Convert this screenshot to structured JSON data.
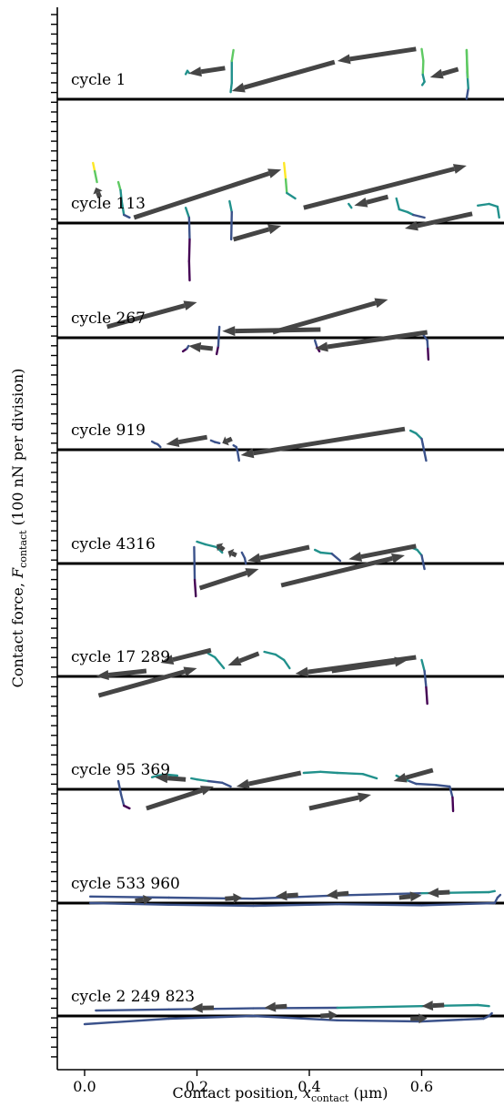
{
  "chart_data": {
    "type": "line",
    "xlabel_main": "Contact position, ",
    "xlabel_var": "x",
    "xlabel_sub": "contact",
    "xlabel_unit": " (μm)",
    "ylabel_main": "Contact force, ",
    "ylabel_var": "F",
    "ylabel_sub": "contact",
    "ylabel_unit": " (100 nN per division)",
    "xlim": [
      -0.05,
      0.745
    ],
    "x_ticks": [
      {
        "value": 0.0,
        "label": "0.0"
      },
      {
        "value": 0.2,
        "label": "0.2"
      },
      {
        "value": 0.4,
        "label": "0.4"
      },
      {
        "value": 0.6,
        "label": "0.6"
      }
    ],
    "y_scale": "offset stacked panels, minor ticks every 100 nN",
    "colormap": [
      "#440154",
      "#3b528b",
      "#21918c",
      "#5ec962",
      "#fde725"
    ],
    "arrow_color": "#454545",
    "separator_color": "#000000",
    "panels": [
      {
        "label": "cycle 1",
        "segments": [
          {
            "x": [
              0.18,
              0.183,
              0.186
            ],
            "y": [
              46,
              52,
              48
            ]
          },
          {
            "x": [
              0.26,
              0.262,
              0.262,
              0.265
            ],
            "y": [
              13,
              30,
              70,
              90
            ]
          },
          {
            "x": [
              0.6,
              0.603,
              0.602,
              0.605,
              0.601
            ],
            "y": [
              92,
              70,
              45,
              32,
              26
            ]
          },
          {
            "x": [
              0.68,
              0.683,
              0.681,
              0.68,
              0.682
            ],
            "y": [
              1,
              20,
              50,
              90,
              40
            ]
          }
        ],
        "arrows": [
          {
            "from": [
              0.25,
              57
            ],
            "to": [
              0.185,
              47
            ]
          },
          {
            "from": [
              0.445,
              68
            ],
            "to": [
              0.262,
              15
            ]
          },
          {
            "from": [
              0.59,
              92
            ],
            "to": [
              0.45,
              70
            ]
          },
          {
            "from": [
              0.665,
              55
            ],
            "to": [
              0.615,
              40
            ]
          }
        ]
      },
      {
        "label": "cycle 113",
        "segments": [
          {
            "x": [
              0.015,
              0.018,
              0.022
            ],
            "y": [
              110,
              95,
              75
            ]
          },
          {
            "x": [
              0.06,
              0.064,
              0.066,
              0.07,
              0.08
            ],
            "y": [
              75,
              60,
              40,
              15,
              10
            ]
          },
          {
            "x": [
              0.355,
              0.358,
              0.36,
              0.375
            ],
            "y": [
              110,
              80,
              55,
              45
            ]
          },
          {
            "x": [
              0.47,
              0.475
            ],
            "y": [
              35,
              28
            ]
          },
          {
            "x": [
              0.555,
              0.56,
              0.575,
              0.585,
              0.605
            ],
            "y": [
              45,
              25,
              20,
              15,
              10
            ]
          },
          {
            "x": [
              0.7,
              0.72,
              0.735,
              0.738
            ],
            "y": [
              32,
              35,
              30,
              10
            ]
          },
          {
            "x": [
              0.18,
              0.186,
              0.187,
              0.186,
              0.187
            ],
            "y": [
              28,
              10,
              -30,
              -70,
              -105
            ]
          },
          {
            "x": [
              0.258,
              0.262,
              0.261
            ],
            "y": [
              40,
              20,
              -30
            ]
          }
        ],
        "arrows": [
          {
            "from": [
              0.027,
              47
            ],
            "to": [
              0.02,
              65
            ]
          },
          {
            "from": [
              0.088,
              10
            ],
            "to": [
              0.35,
              98
            ]
          },
          {
            "from": [
              0.39,
              28
            ],
            "to": [
              0.68,
              105
            ]
          },
          {
            "from": [
              0.265,
              -30
            ],
            "to": [
              0.35,
              -5
            ]
          },
          {
            "from": [
              0.54,
              48
            ],
            "to": [
              0.48,
              32
            ]
          },
          {
            "from": [
              0.69,
              17
            ],
            "to": [
              0.57,
              -10
            ]
          }
        ]
      },
      {
        "label": "cycle 267",
        "segments": [
          {
            "x": [
              0.175,
              0.182,
              0.185
            ],
            "y": [
              -25,
              -20,
              -15
            ]
          },
          {
            "x": [
              0.235,
              0.238,
              0.239,
              0.24
            ],
            "y": [
              -30,
              -15,
              5,
              20
            ]
          },
          {
            "x": [
              0.41,
              0.414,
              0.418
            ],
            "y": [
              -5,
              -18,
              -25
            ]
          },
          {
            "x": [
              0.6,
              0.61,
              0.611,
              0.612
            ],
            "y": [
              10,
              -5,
              -20,
              -40
            ]
          }
        ],
        "arrows": [
          {
            "from": [
              0.228,
              -20
            ],
            "to": [
              0.185,
              -15
            ]
          },
          {
            "from": [
              0.42,
              15
            ],
            "to": [
              0.245,
              12
            ]
          },
          {
            "from": [
              0.61,
              10
            ],
            "to": [
              0.41,
              -20
            ]
          },
          {
            "from": [
              0.04,
              20
            ],
            "to": [
              0.2,
              65
            ]
          },
          {
            "from": [
              0.335,
              10
            ],
            "to": [
              0.54,
              70
            ]
          }
        ]
      },
      {
        "label": "cycle 919",
        "segments": [
          {
            "x": [
              0.12,
              0.125,
              0.13,
              0.135
            ],
            "y": [
              15,
              12,
              10,
              5
            ]
          },
          {
            "x": [
              0.225,
              0.232,
              0.24
            ],
            "y": [
              17,
              14,
              12
            ]
          },
          {
            "x": [
              0.265,
              0.27,
              0.272,
              0.275
            ],
            "y": [
              8,
              5,
              -2,
              -20
            ]
          },
          {
            "x": [
              0.58,
              0.59,
              0.6,
              0.602,
              0.605,
              0.608
            ],
            "y": [
              35,
              30,
              20,
              10,
              -5,
              -20
            ]
          }
        ],
        "arrows": [
          {
            "from": [
              0.218,
              23
            ],
            "to": [
              0.145,
              10
            ]
          },
          {
            "from": [
              0.262,
              20
            ],
            "to": [
              0.245,
              12
            ]
          },
          {
            "from": [
              0.57,
              38
            ],
            "to": [
              0.278,
              -10
            ]
          }
        ]
      },
      {
        "label": "cycle 4316",
        "segments": [
          {
            "x": [
              0.2,
              0.215,
              0.235,
              0.245
            ],
            "y": [
              40,
              35,
              30,
              20
            ]
          },
          {
            "x": [
              0.28,
              0.285,
              0.287
            ],
            "y": [
              20,
              10,
              0
            ]
          },
          {
            "x": [
              0.41,
              0.42,
              0.44,
              0.455
            ],
            "y": [
              25,
              20,
              18,
              5
            ]
          },
          {
            "x": [
              0.58,
              0.592,
              0.6,
              0.605
            ],
            "y": [
              30,
              25,
              15,
              -10
            ]
          },
          {
            "x": [
              0.195,
              0.196,
              0.198
            ],
            "y": [
              30,
              -30,
              -60
            ]
          }
        ],
        "arrows": [
          {
            "from": [
              0.248,
              25
            ],
            "to": [
              0.235,
              35
            ]
          },
          {
            "from": [
              0.27,
              15
            ],
            "to": [
              0.255,
              22
            ]
          },
          {
            "from": [
              0.4,
              30
            ],
            "to": [
              0.29,
              5
            ]
          },
          {
            "from": [
              0.59,
              32
            ],
            "to": [
              0.47,
              8
            ]
          },
          {
            "from": [
              0.205,
              -45
            ],
            "to": [
              0.31,
              -10
            ]
          },
          {
            "from": [
              0.35,
              -40
            ],
            "to": [
              0.57,
              15
            ]
          }
        ]
      },
      {
        "label": "cycle 17 289",
        "segments": [
          {
            "x": [
              0.22,
              0.232,
              0.24,
              0.248
            ],
            "y": [
              42,
              35,
              25,
              15
            ]
          },
          {
            "x": [
              0.32,
              0.34,
              0.355,
              0.365
            ],
            "y": [
              45,
              40,
              30,
              15
            ]
          },
          {
            "x": [
              0.6,
              0.605,
              0.608,
              0.61
            ],
            "y": [
              30,
              10,
              -20,
              -50
            ]
          }
        ],
        "arrows": [
          {
            "from": [
              0.225,
              48
            ],
            "to": [
              0.135,
              25
            ]
          },
          {
            "from": [
              0.31,
              42
            ],
            "to": [
              0.255,
              20
            ]
          },
          {
            "from": [
              0.59,
              35
            ],
            "to": [
              0.375,
              5
            ]
          },
          {
            "from": [
              0.11,
              10
            ],
            "to": [
              0.02,
              0
            ]
          },
          {
            "from": [
              0.025,
              -35
            ],
            "to": [
              0.2,
              15
            ]
          },
          {
            "from": [
              0.44,
              10
            ],
            "to": [
              0.575,
              30
            ]
          }
        ]
      },
      {
        "label": "cycle 95 369",
        "segments": [
          {
            "x": [
              0.12,
              0.13,
              0.145,
              0.165
            ],
            "y": [
              22,
              25,
              27,
              25
            ]
          },
          {
            "x": [
              0.19,
              0.2,
              0.22,
              0.245,
              0.26
            ],
            "y": [
              20,
              18,
              15,
              12,
              5
            ]
          },
          {
            "x": [
              0.39,
              0.42,
              0.45,
              0.495,
              0.52
            ],
            "y": [
              30,
              32,
              30,
              28,
              20
            ]
          },
          {
            "x": [
              0.555,
              0.565,
              0.578,
              0.59
            ],
            "y": [
              25,
              20,
              15,
              10
            ]
          },
          {
            "x": [
              0.59,
              0.625,
              0.65,
              0.655,
              0.656
            ],
            "y": [
              10,
              8,
              5,
              -15,
              -40
            ]
          },
          {
            "x": [
              0.06,
              0.065,
              0.07,
              0.08
            ],
            "y": [
              15,
              -10,
              -30,
              -35
            ]
          }
        ],
        "arrows": [
          {
            "from": [
              0.18,
              18
            ],
            "to": [
              0.125,
              22
            ]
          },
          {
            "from": [
              0.385,
              30
            ],
            "to": [
              0.27,
              5
            ]
          },
          {
            "from": [
              0.62,
              35
            ],
            "to": [
              0.55,
              15
            ]
          },
          {
            "from": [
              0.11,
              -35
            ],
            "to": [
              0.23,
              5
            ]
          },
          {
            "from": [
              0.4,
              -35
            ],
            "to": [
              0.51,
              -10
            ]
          }
        ]
      },
      {
        "label": "cycle 533 960",
        "segments": [
          {
            "x": [
              0.01,
              0.15,
              0.3,
              0.45,
              0.6,
              0.73,
              0.735,
              0.74
            ],
            "y": [
              0,
              -3,
              -5,
              -2,
              -4,
              0,
              10,
              15
            ]
          },
          {
            "x": [
              0.01,
              0.15,
              0.3,
              0.45,
              0.6,
              0.72,
              0.73
            ],
            "y": [
              12,
              10,
              8,
              14,
              18,
              20,
              22
            ]
          }
        ],
        "arrows": [
          {
            "from": [
              0.09,
              4
            ],
            "to": [
              0.12,
              8
            ]
          },
          {
            "from": [
              0.25,
              8
            ],
            "to": [
              0.28,
              10
            ]
          },
          {
            "from": [
              0.56,
              10
            ],
            "to": [
              0.6,
              14
            ]
          },
          {
            "from": [
              0.47,
              18
            ],
            "to": [
              0.43,
              14
            ]
          },
          {
            "from": [
              0.65,
              20
            ],
            "to": [
              0.61,
              18
            ]
          },
          {
            "from": [
              0.38,
              15
            ],
            "to": [
              0.34,
              12
            ]
          }
        ]
      },
      {
        "label": "cycle 2 249 823",
        "segments": [
          {
            "x": [
              0.0,
              0.15,
              0.3,
              0.45,
              0.6,
              0.71,
              0.72,
              0.725
            ],
            "y": [
              -15,
              -5,
              0,
              -8,
              -10,
              -5,
              0,
              5
            ]
          },
          {
            "x": [
              0.02,
              0.15,
              0.3,
              0.45,
              0.6,
              0.7,
              0.72
            ],
            "y": [
              10,
              12,
              14,
              15,
              18,
              20,
              18
            ]
          }
        ],
        "arrows": [
          {
            "from": [
              0.42,
              0
            ],
            "to": [
              0.45,
              2
            ]
          },
          {
            "from": [
              0.58,
              -5
            ],
            "to": [
              0.61,
              -4
            ]
          },
          {
            "from": [
              0.36,
              18
            ],
            "to": [
              0.32,
              15
            ]
          },
          {
            "from": [
              0.23,
              15
            ],
            "to": [
              0.19,
              14
            ]
          },
          {
            "from": [
              0.64,
              20
            ],
            "to": [
              0.6,
              18
            ]
          }
        ]
      }
    ]
  }
}
